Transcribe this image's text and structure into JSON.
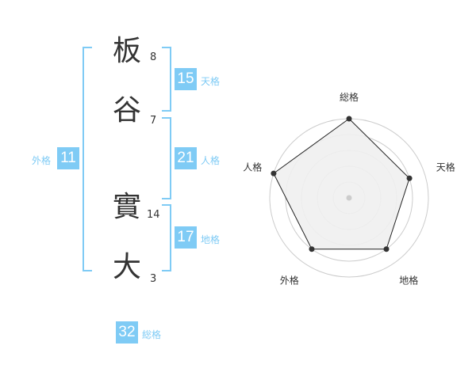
{
  "name": {
    "characters": [
      {
        "char": "板",
        "strokes": "8"
      },
      {
        "char": "谷",
        "strokes": "7"
      },
      {
        "char": "實",
        "strokes": "14"
      },
      {
        "char": "大",
        "strokes": "3"
      }
    ]
  },
  "fortunes": {
    "tenkaku": {
      "label": "天格",
      "value": "15"
    },
    "jinkaku": {
      "label": "人格",
      "value": "21"
    },
    "chikaku": {
      "label": "地格",
      "value": "17"
    },
    "gaikaku": {
      "label": "外格",
      "value": "11"
    },
    "soukaku": {
      "label": "総格",
      "value": "32"
    }
  },
  "colors": {
    "accent": "#7fcbf5",
    "text": "#333333",
    "radar_fill": "#f0f0f0",
    "grid": "#cccccc"
  },
  "chart_data": {
    "type": "radar",
    "axes": [
      "総格",
      "天格",
      "地格",
      "外格",
      "人格"
    ],
    "values": [
      5,
      4,
      4,
      4,
      5
    ],
    "range": [
      0,
      5
    ],
    "grid_rings": 5
  }
}
